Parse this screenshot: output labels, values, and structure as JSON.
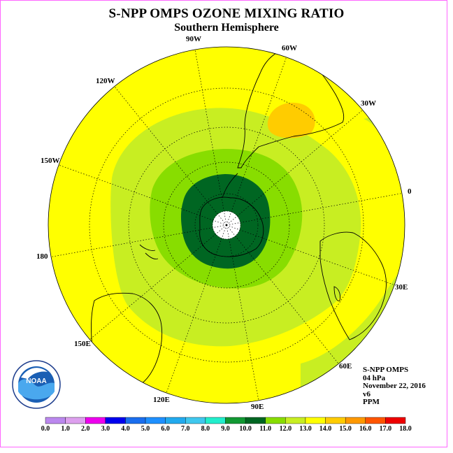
{
  "title": "S-NPP OMPS OZONE MIXING RATIO",
  "subtitle": "Southern Hemisphere",
  "longitude_labels": {
    "w90": "90W",
    "w60": "60W",
    "w30": "30W",
    "e0": "0",
    "e30": "30E",
    "e60": "60E",
    "e90": "90E",
    "e120": "120E",
    "e150": "150E",
    "e180": "180",
    "w150": "150W",
    "w120": "120W"
  },
  "info": {
    "instrument": "S-NPP OMPS",
    "level": "04 hPa",
    "date": "November 22, 2016",
    "version": "v6",
    "units": "PPM"
  },
  "colorbar": {
    "ticks": [
      "0.0",
      "1.0",
      "2.0",
      "3.0",
      "4.0",
      "5.0",
      "6.0",
      "7.0",
      "8.0",
      "9.0",
      "10.0",
      "11.0",
      "12.0",
      "13.0",
      "14.0",
      "15.0",
      "16.0",
      "17.0",
      "18.0"
    ],
    "colors": [
      "#bb88ee",
      "#dda0ee",
      "#ee00ee",
      "#0000ee",
      "#1a6eee",
      "#1e90ff",
      "#22aaee",
      "#40c8ee",
      "#22eecc",
      "#119933",
      "#006622",
      "#88dd00",
      "#c8ee22",
      "#ffff00",
      "#ffcc00",
      "#ff9900",
      "#ff5500",
      "#ee0000",
      "#885533"
    ]
  },
  "palette": {
    "yellow": "#ffff00",
    "light_green": "#c8ee22",
    "green": "#88dd00",
    "dark_green": "#006622",
    "orange": "#ffcc00"
  },
  "logo_text": "NOAA"
}
